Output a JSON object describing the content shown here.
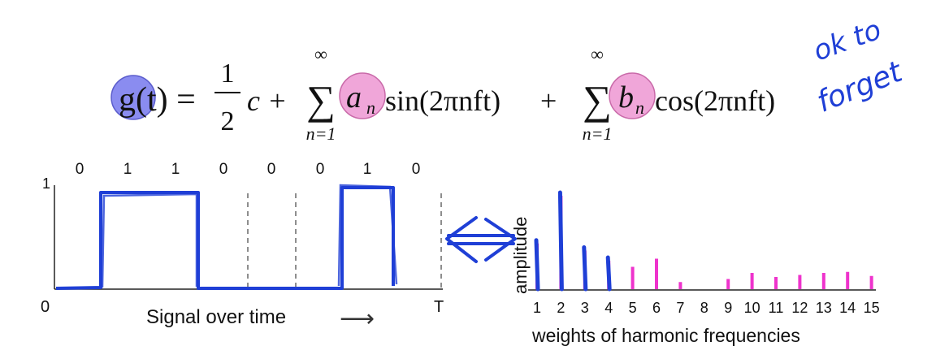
{
  "formula": {
    "lhs": "g(t) =",
    "half_num": "1",
    "half_den": "2",
    "c": "c +",
    "sigma": "∑",
    "upper": "∞",
    "lower": "n=1",
    "a_term": "a",
    "a_sub": "n",
    "sin_term": "sin(2πnft)",
    "plus": "+",
    "b_term": "b",
    "b_sub": "n",
    "cos_term": "cos(2πnft)"
  },
  "handwritten_note": [
    "ok to",
    "forget"
  ],
  "signal": {
    "bits": [
      "0",
      "1",
      "1",
      "0",
      "0",
      "0",
      "1",
      "0"
    ],
    "y_tick": "1",
    "x_start": "0",
    "x_end": "T",
    "caption": "Signal over time",
    "arrow": "⟶"
  },
  "spectrum": {
    "ylabel": "amplitude",
    "xlabel": "weights of harmonic frequencies",
    "ticks": [
      "1",
      "2",
      "3",
      "4",
      "5",
      "6",
      "7",
      "8",
      "9",
      "10",
      "11",
      "12",
      "13",
      "14",
      "15"
    ],
    "values": [
      0.45,
      0.92,
      0.38,
      0.28,
      0.22,
      0.3,
      0.07,
      0,
      0.1,
      0.16,
      0.12,
      0.14,
      0.16,
      0.17,
      0.13
    ],
    "colors": {
      "bar": "#ee33cc",
      "ink": "#1f3fd6",
      "circle_g": "#8a8cf0",
      "circle_ab": "#f0a6d9"
    }
  }
}
